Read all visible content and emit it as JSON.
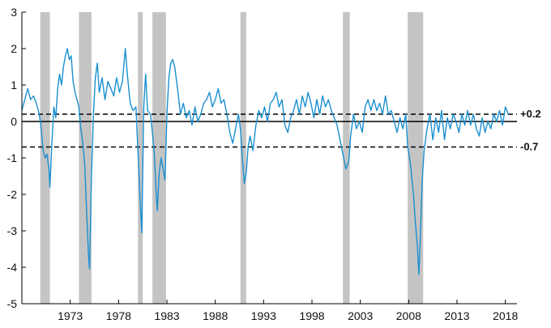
{
  "chart_data": {
    "type": "line",
    "title": "",
    "xlabel": "",
    "ylabel": "",
    "xlim": [
      1968.0,
      2019.2
    ],
    "ylim": [
      -5,
      3
    ],
    "grid": false,
    "legend": "none",
    "x_ticks": [
      1973,
      1978,
      1983,
      1988,
      1993,
      1998,
      2003,
      2008,
      2013,
      2018
    ],
    "x_tick_labels": [
      "1973",
      "1978",
      "1983",
      "1988",
      "1993",
      "1998",
      "2003",
      "2008",
      "2013",
      "2018"
    ],
    "y_ticks": [
      3,
      2,
      1,
      0,
      -1,
      -2,
      -3,
      -4,
      -5
    ],
    "y_tick_labels": [
      "3",
      "2",
      "1",
      "0",
      "-1",
      "-2",
      "-3",
      "-4",
      "-5"
    ],
    "recession_bands": [
      [
        1969.9,
        1970.9
      ],
      [
        1973.9,
        1975.2
      ],
      [
        1980.0,
        1980.5
      ],
      [
        1981.5,
        1982.9
      ],
      [
        1990.6,
        1991.2
      ],
      [
        2001.2,
        2001.9
      ],
      [
        2007.9,
        2009.5
      ]
    ],
    "reference_lines": [
      {
        "label": "+0.2",
        "value": 0.2,
        "style": "dashed"
      },
      {
        "label": "-0.7",
        "value": -0.7,
        "style": "dashed"
      }
    ],
    "zero_line": 0,
    "series": [
      {
        "color": "#1a8fd0",
        "points": [
          [
            1968.0,
            0.3
          ],
          [
            1968.3,
            0.6
          ],
          [
            1968.6,
            0.9
          ],
          [
            1968.9,
            0.6
          ],
          [
            1969.2,
            0.7
          ],
          [
            1969.5,
            0.5
          ],
          [
            1969.8,
            0.2
          ],
          [
            1970.0,
            -0.2
          ],
          [
            1970.2,
            -0.8
          ],
          [
            1970.4,
            -1.0
          ],
          [
            1970.6,
            -0.9
          ],
          [
            1970.8,
            -1.3
          ],
          [
            1970.9,
            -1.8
          ],
          [
            1971.1,
            -0.6
          ],
          [
            1971.3,
            0.4
          ],
          [
            1971.5,
            0.1
          ],
          [
            1971.7,
            0.9
          ],
          [
            1971.9,
            1.3
          ],
          [
            1972.1,
            1.0
          ],
          [
            1972.3,
            1.5
          ],
          [
            1972.5,
            1.8
          ],
          [
            1972.7,
            2.0
          ],
          [
            1972.9,
            1.7
          ],
          [
            1973.1,
            1.8
          ],
          [
            1973.3,
            1.1
          ],
          [
            1973.5,
            0.8
          ],
          [
            1973.7,
            0.6
          ],
          [
            1973.9,
            0.4
          ],
          [
            1974.1,
            -0.2
          ],
          [
            1974.3,
            -0.6
          ],
          [
            1974.5,
            -1.2
          ],
          [
            1974.7,
            -2.5
          ],
          [
            1974.9,
            -3.7
          ],
          [
            1975.0,
            -4.05
          ],
          [
            1975.2,
            -1.5
          ],
          [
            1975.4,
            0.2
          ],
          [
            1975.6,
            1.2
          ],
          [
            1975.8,
            1.6
          ],
          [
            1976.0,
            0.8
          ],
          [
            1976.3,
            1.2
          ],
          [
            1976.6,
            0.6
          ],
          [
            1976.9,
            1.1
          ],
          [
            1977.2,
            0.9
          ],
          [
            1977.5,
            0.7
          ],
          [
            1977.8,
            1.2
          ],
          [
            1978.1,
            0.8
          ],
          [
            1978.4,
            1.1
          ],
          [
            1978.7,
            2.0
          ],
          [
            1978.9,
            1.3
          ],
          [
            1979.2,
            0.5
          ],
          [
            1979.5,
            0.3
          ],
          [
            1979.8,
            0.4
          ],
          [
            1980.0,
            -0.8
          ],
          [
            1980.2,
            -2.0
          ],
          [
            1980.4,
            -3.05
          ],
          [
            1980.6,
            0.4
          ],
          [
            1980.8,
            1.3
          ],
          [
            1981.0,
            0.3
          ],
          [
            1981.3,
            0.2
          ],
          [
            1981.5,
            -0.3
          ],
          [
            1981.7,
            -0.9
          ],
          [
            1981.9,
            -2.0
          ],
          [
            1982.0,
            -2.45
          ],
          [
            1982.2,
            -1.4
          ],
          [
            1982.4,
            -1.0
          ],
          [
            1982.6,
            -1.3
          ],
          [
            1982.8,
            -1.6
          ],
          [
            1983.0,
            0.2
          ],
          [
            1983.2,
            1.2
          ],
          [
            1983.4,
            1.6
          ],
          [
            1983.6,
            1.7
          ],
          [
            1983.8,
            1.5
          ],
          [
            1984.1,
            0.9
          ],
          [
            1984.4,
            0.2
          ],
          [
            1984.7,
            0.5
          ],
          [
            1985.0,
            0.1
          ],
          [
            1985.3,
            0.3
          ],
          [
            1985.6,
            -0.1
          ],
          [
            1985.9,
            0.4
          ],
          [
            1986.2,
            0.0
          ],
          [
            1986.5,
            0.2
          ],
          [
            1986.8,
            0.5
          ],
          [
            1987.1,
            0.6
          ],
          [
            1987.4,
            0.8
          ],
          [
            1987.7,
            0.4
          ],
          [
            1988.0,
            0.6
          ],
          [
            1988.3,
            0.9
          ],
          [
            1988.6,
            0.5
          ],
          [
            1988.9,
            0.6
          ],
          [
            1989.2,
            0.2
          ],
          [
            1989.5,
            -0.3
          ],
          [
            1989.8,
            -0.6
          ],
          [
            1990.1,
            -0.2
          ],
          [
            1990.4,
            0.2
          ],
          [
            1990.6,
            -0.2
          ],
          [
            1990.8,
            -1.0
          ],
          [
            1991.0,
            -1.7
          ],
          [
            1991.2,
            -1.4
          ],
          [
            1991.4,
            -0.7
          ],
          [
            1991.6,
            -0.4
          ],
          [
            1991.9,
            -0.8
          ],
          [
            1992.2,
            -0.1
          ],
          [
            1992.5,
            0.3
          ],
          [
            1992.8,
            0.1
          ],
          [
            1993.1,
            0.4
          ],
          [
            1993.4,
            0.0
          ],
          [
            1993.7,
            0.5
          ],
          [
            1994.0,
            0.6
          ],
          [
            1994.3,
            0.8
          ],
          [
            1994.6,
            0.4
          ],
          [
            1994.9,
            0.6
          ],
          [
            1995.2,
            -0.1
          ],
          [
            1995.5,
            -0.3
          ],
          [
            1995.8,
            0.1
          ],
          [
            1996.1,
            0.3
          ],
          [
            1996.4,
            0.6
          ],
          [
            1996.7,
            0.2
          ],
          [
            1997.0,
            0.7
          ],
          [
            1997.3,
            0.4
          ],
          [
            1997.6,
            0.8
          ],
          [
            1997.9,
            0.5
          ],
          [
            1998.2,
            0.1
          ],
          [
            1998.5,
            0.6
          ],
          [
            1998.8,
            0.2
          ],
          [
            1999.1,
            0.7
          ],
          [
            1999.4,
            0.4
          ],
          [
            1999.7,
            0.6
          ],
          [
            2000.0,
            0.3
          ],
          [
            2000.3,
            0.1
          ],
          [
            2000.6,
            -0.1
          ],
          [
            2000.9,
            -0.5
          ],
          [
            2001.2,
            -0.9
          ],
          [
            2001.5,
            -1.3
          ],
          [
            2001.8,
            -1.1
          ],
          [
            2002.0,
            -0.4
          ],
          [
            2002.3,
            0.2
          ],
          [
            2002.6,
            -0.2
          ],
          [
            2002.9,
            0.0
          ],
          [
            2003.2,
            -0.3
          ],
          [
            2003.5,
            0.4
          ],
          [
            2003.8,
            0.6
          ],
          [
            2004.1,
            0.3
          ],
          [
            2004.4,
            0.6
          ],
          [
            2004.7,
            0.3
          ],
          [
            2005.0,
            0.5
          ],
          [
            2005.3,
            0.2
          ],
          [
            2005.6,
            0.7
          ],
          [
            2005.9,
            0.2
          ],
          [
            2006.2,
            0.3
          ],
          [
            2006.5,
            0.0
          ],
          [
            2006.8,
            -0.3
          ],
          [
            2007.1,
            0.1
          ],
          [
            2007.4,
            -0.2
          ],
          [
            2007.7,
            0.2
          ],
          [
            2007.9,
            -0.7
          ],
          [
            2008.2,
            -1.2
          ],
          [
            2008.5,
            -2.0
          ],
          [
            2008.7,
            -2.8
          ],
          [
            2008.9,
            -3.4
          ],
          [
            2009.05,
            -4.2
          ],
          [
            2009.2,
            -3.2
          ],
          [
            2009.4,
            -1.6
          ],
          [
            2009.6,
            -0.8
          ],
          [
            2009.9,
            -0.2
          ],
          [
            2010.2,
            0.2
          ],
          [
            2010.5,
            -0.5
          ],
          [
            2010.8,
            0.1
          ],
          [
            2011.1,
            -0.3
          ],
          [
            2011.4,
            0.3
          ],
          [
            2011.7,
            -0.5
          ],
          [
            2012.0,
            0.1
          ],
          [
            2012.3,
            -0.2
          ],
          [
            2012.6,
            0.2
          ],
          [
            2012.9,
            0.0
          ],
          [
            2013.2,
            -0.3
          ],
          [
            2013.5,
            0.2
          ],
          [
            2013.8,
            -0.1
          ],
          [
            2014.1,
            0.3
          ],
          [
            2014.4,
            -0.1
          ],
          [
            2014.7,
            0.2
          ],
          [
            2015.0,
            -0.2
          ],
          [
            2015.3,
            -0.4
          ],
          [
            2015.6,
            0.1
          ],
          [
            2015.9,
            -0.3
          ],
          [
            2016.2,
            0.0
          ],
          [
            2016.5,
            -0.2
          ],
          [
            2016.8,
            0.2
          ],
          [
            2017.1,
            0.0
          ],
          [
            2017.4,
            0.3
          ],
          [
            2017.7,
            -0.1
          ],
          [
            2018.0,
            0.4
          ],
          [
            2018.3,
            0.2
          ]
        ]
      }
    ]
  }
}
